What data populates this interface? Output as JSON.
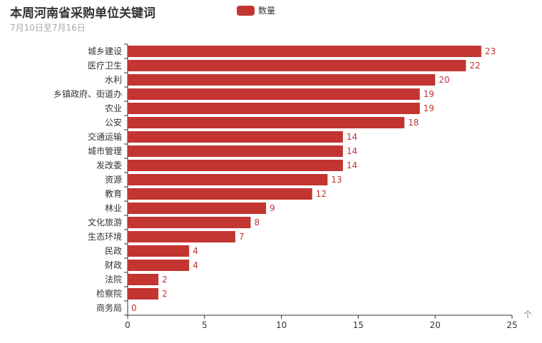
{
  "chart_data": {
    "type": "bar",
    "orientation": "horizontal",
    "title": "本周河南省采购单位关键词",
    "subtitle": "7月10日至7月16日",
    "legend": [
      "数量"
    ],
    "legend_position": "top-center",
    "xlabel": "个",
    "ylabel": "",
    "xlim": [
      0,
      25
    ],
    "xticks": [
      0,
      5,
      10,
      15,
      20,
      25
    ],
    "color": "#c23531",
    "categories": [
      "城乡建设",
      "医疗卫生",
      "水利",
      "乡镇政府、街道办",
      "农业",
      "公安",
      "交通运输",
      "城市管理",
      "发改委",
      "资源",
      "教育",
      "林业",
      "文化旅游",
      "生态环境",
      "民政",
      "财政",
      "法院",
      "检察院",
      "商务局"
    ],
    "series": [
      {
        "name": "数量",
        "values": [
          23,
          22,
          20,
          19,
          19,
          18,
          14,
          14,
          14,
          13,
          12,
          9,
          8,
          7,
          4,
          4,
          2,
          2,
          0
        ]
      }
    ]
  }
}
